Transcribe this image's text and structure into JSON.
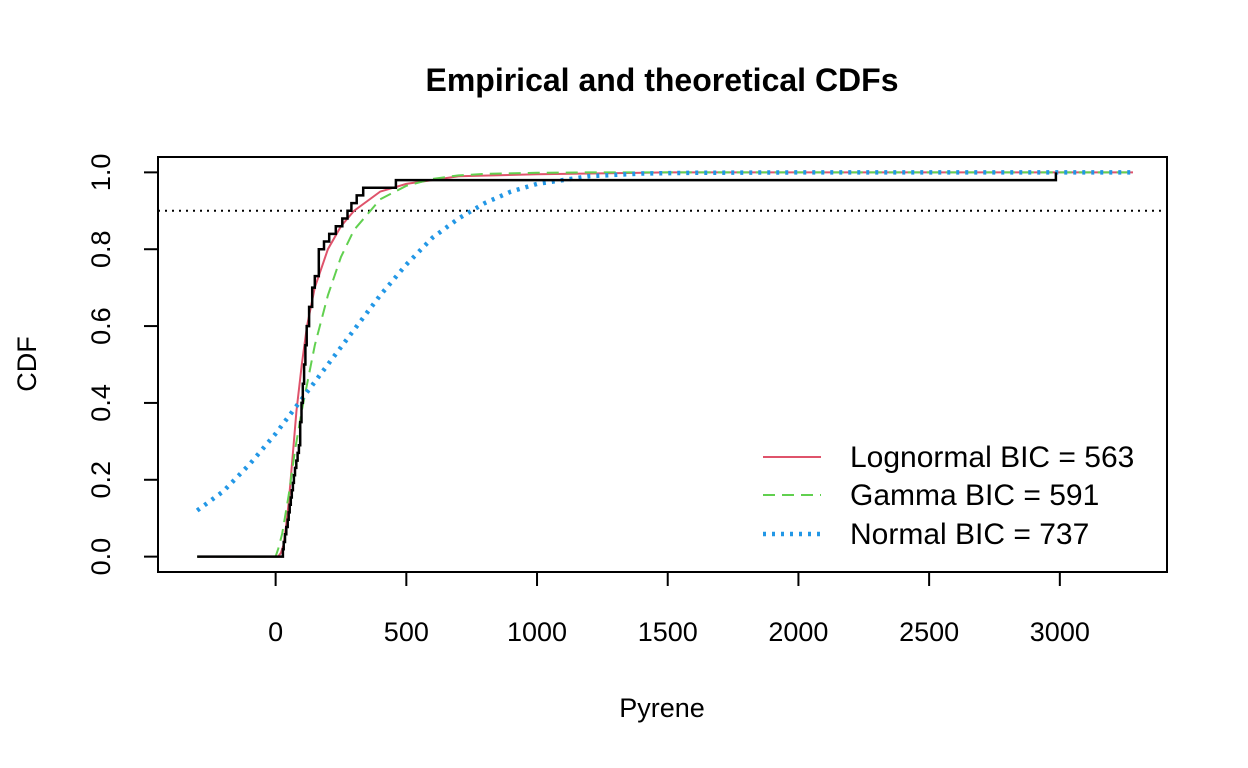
{
  "chart_data": {
    "type": "line",
    "title": "Empirical and theoretical CDFs",
    "xlabel": "Pyrene",
    "ylabel": "CDF",
    "xlim": [
      -450,
      3410
    ],
    "ylim": [
      -0.04,
      1.04
    ],
    "xticks": [
      "0",
      "500",
      "1000",
      "1500",
      "2000",
      "2500",
      "3000"
    ],
    "yticks": [
      "0.0",
      "0.2",
      "0.4",
      "0.6",
      "0.8",
      "1.0"
    ],
    "grid": false,
    "legend_position": "bottom-right",
    "reference_line": {
      "y": 0.9,
      "style": "dotted",
      "color": "#000000"
    },
    "empirical": {
      "name": "",
      "color": "#000000",
      "x": [
        -300,
        28,
        31,
        36,
        41,
        46,
        50,
        54,
        58,
        62,
        66,
        70,
        74,
        79,
        84,
        89,
        94,
        99,
        104,
        109,
        114,
        119,
        128,
        140,
        150,
        165,
        185,
        205,
        230,
        255,
        275,
        290,
        310,
        335,
        460,
        1000,
        2985
      ],
      "y": [
        0.0,
        0.019,
        0.038,
        0.058,
        0.077,
        0.096,
        0.115,
        0.135,
        0.154,
        0.173,
        0.192,
        0.212,
        0.231,
        0.25,
        0.27,
        0.29,
        0.35,
        0.4,
        0.45,
        0.5,
        0.55,
        0.6,
        0.65,
        0.7,
        0.73,
        0.8,
        0.82,
        0.84,
        0.86,
        0.88,
        0.9,
        0.92,
        0.94,
        0.96,
        0.98,
        0.98,
        1.0
      ]
    },
    "series": [
      {
        "name": "Lognormal BIC = 563",
        "color": "#DF536B",
        "dash": "solid",
        "x": [
          -300,
          -10,
          0,
          10,
          20,
          30,
          40,
          50,
          60,
          80,
          100,
          120,
          150,
          200,
          250,
          300,
          400,
          500,
          700,
          1000,
          1500,
          3280
        ],
        "y": [
          0.0,
          0.0,
          0.0,
          0.0,
          0.01,
          0.03,
          0.08,
          0.14,
          0.22,
          0.38,
          0.5,
          0.6,
          0.7,
          0.8,
          0.86,
          0.9,
          0.95,
          0.97,
          0.99,
          0.995,
          1.0,
          1.0
        ]
      },
      {
        "name": "Gamma BIC = 591",
        "color": "#61D04F",
        "dash": "dashed",
        "x": [
          -300,
          -10,
          0,
          10,
          25,
          50,
          75,
          100,
          150,
          200,
          250,
          300,
          400,
          500,
          600,
          700,
          800,
          1000,
          1200,
          3280
        ],
        "y": [
          0.0,
          0.0,
          0.0,
          0.02,
          0.06,
          0.16,
          0.28,
          0.38,
          0.55,
          0.68,
          0.78,
          0.85,
          0.93,
          0.965,
          0.983,
          0.992,
          0.996,
          0.999,
          1.0,
          1.0
        ]
      },
      {
        "name": "Normal BIC = 737",
        "color": "#2297E6",
        "dash": "dotted",
        "x": [
          -300,
          -200,
          -100,
          0,
          100,
          200,
          300,
          400,
          500,
          600,
          700,
          800,
          900,
          1000,
          1200,
          1400,
          1600,
          2000,
          3280
        ],
        "y": [
          0.12,
          0.17,
          0.24,
          0.32,
          0.41,
          0.5,
          0.59,
          0.68,
          0.76,
          0.83,
          0.88,
          0.92,
          0.95,
          0.97,
          0.99,
          0.997,
          0.999,
          1.0,
          1.0
        ]
      }
    ]
  }
}
